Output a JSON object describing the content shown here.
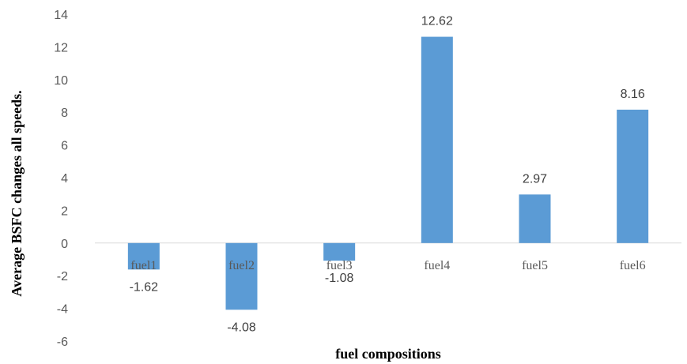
{
  "chart_data": {
    "type": "bar",
    "title": "",
    "xlabel": "fuel compositions",
    "ylabel": "Average BSFC changes all speeds.",
    "categories": [
      "fuel1",
      "fuel2",
      "fuel3",
      "fuel4",
      "fuel5",
      "fuel6"
    ],
    "values": [
      -1.62,
      -4.08,
      -1.08,
      12.62,
      2.97,
      8.16
    ],
    "data_labels": [
      "-1.62",
      "-4.08",
      "-1.08",
      "12.62",
      "2.97",
      "8.16"
    ],
    "ylim": [
      -6,
      14
    ],
    "yticks": [
      -6,
      -4,
      -2,
      0,
      2,
      4,
      6,
      8,
      10,
      12,
      14
    ],
    "ytick_labels": [
      "-6",
      "-4",
      "-2",
      "0",
      "2",
      "4",
      "6",
      "8",
      "10",
      "12",
      "14"
    ],
    "grid": false,
    "legend": "none",
    "bar_color": "#5B9BD5",
    "axis_color": "#D9D9D9"
  }
}
